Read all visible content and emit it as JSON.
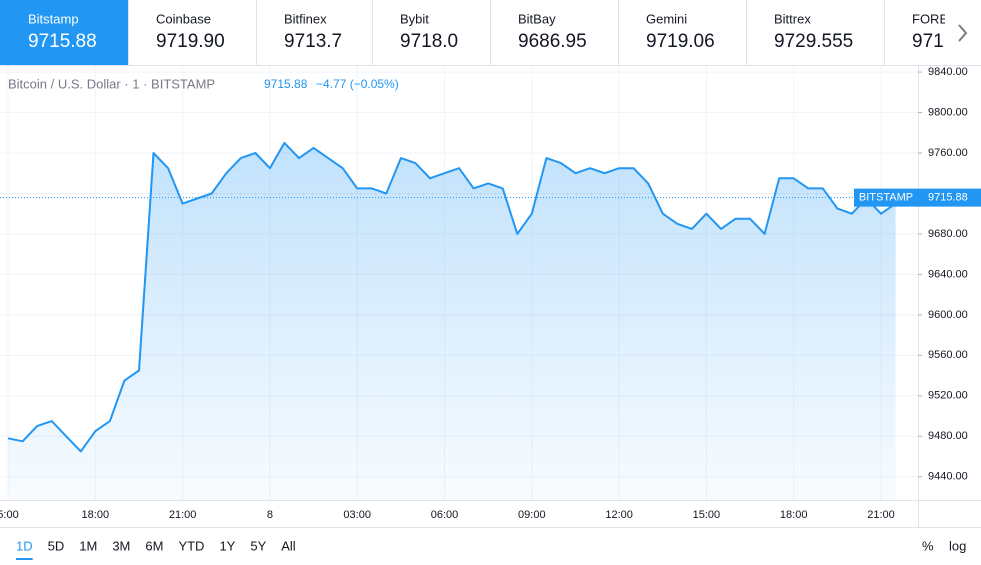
{
  "tabs": [
    {
      "name": "Bitstamp",
      "price": "9715.88"
    },
    {
      "name": "Coinbase",
      "price": "9719.90"
    },
    {
      "name": "Bitfinex",
      "price": "9713.7"
    },
    {
      "name": "Bybit",
      "price": "9718.0"
    },
    {
      "name": "BitBay",
      "price": "9686.95"
    },
    {
      "name": "Gemini",
      "price": "9719.06"
    },
    {
      "name": "Bittrex",
      "price": "9729.555"
    },
    {
      "name": "FORE",
      "price": "971"
    }
  ],
  "ranges": [
    "1D",
    "5D",
    "1M",
    "3M",
    "6M",
    "YTD",
    "1Y",
    "5Y",
    "All"
  ],
  "scale_buttons": [
    "%",
    "log"
  ],
  "chart_data": {
    "type": "line",
    "title": "Bitcoin / U.S. Dollar · 1 · BITSTAMP",
    "last_price": 9715.88,
    "change": "−4.77 (−0.05%)",
    "price_label": "BITSTAMP",
    "color": "#2196f3",
    "categories": [
      "5:00",
      null,
      null,
      null,
      null,
      null,
      "18:00",
      null,
      null,
      null,
      null,
      null,
      "21:00",
      null,
      null,
      null,
      null,
      null,
      "8",
      null,
      null,
      null,
      null,
      null,
      "03:00",
      null,
      null,
      null,
      null,
      null,
      "06:00",
      null,
      null,
      null,
      null,
      null,
      "09:00",
      null,
      null,
      null,
      null,
      null,
      "12:00",
      null,
      null,
      null,
      null,
      null,
      "15:00",
      null,
      null,
      null,
      null,
      null,
      "18:00",
      null,
      null,
      null,
      null,
      null,
      "21:00",
      null
    ],
    "values": [
      9478,
      9475,
      9490,
      9495,
      9480,
      9465,
      9485,
      9495,
      9535,
      9545,
      9760,
      9745,
      9710,
      9715,
      9720,
      9740,
      9755,
      9760,
      9745,
      9770,
      9755,
      9765,
      9755,
      9745,
      9725,
      9725,
      9720,
      9755,
      9750,
      9735,
      9740,
      9745,
      9725,
      9730,
      9725,
      9680,
      9700,
      9755,
      9750,
      9740,
      9745,
      9740,
      9745,
      9745,
      9730,
      9700,
      9690,
      9685,
      9700,
      9685,
      9695,
      9695,
      9680,
      9735,
      9735,
      9725,
      9725,
      9705,
      9700,
      9715,
      9700,
      9710
    ],
    "ylim": [
      9417,
      9846
    ],
    "yticks": [
      {
        "value": 9440,
        "label": "9440.00"
      },
      {
        "value": 9480,
        "label": "9480.00"
      },
      {
        "value": 9520,
        "label": "9520.00"
      },
      {
        "value": 9560,
        "label": "9560.00"
      },
      {
        "value": 9600,
        "label": "9600.00"
      },
      {
        "value": 9640,
        "label": "9640.00"
      },
      {
        "value": 9680,
        "label": "9680.00"
      },
      {
        "value": 9720,
        "label": "9720.00"
      },
      {
        "value": 9760,
        "label": "9760.00"
      },
      {
        "value": 9800,
        "label": "9800.00"
      },
      {
        "value": 9840,
        "label": "9840.00"
      }
    ],
    "grid": true
  }
}
